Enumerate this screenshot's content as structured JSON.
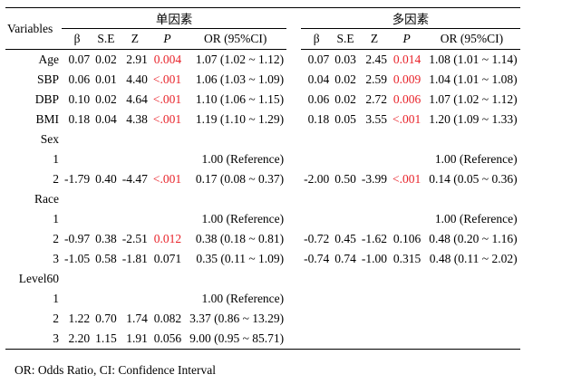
{
  "header": {
    "variables_label": "Variables",
    "group1": "单因素",
    "group2": "多因素",
    "cols": {
      "beta": "β",
      "se": "S.E",
      "z": "Z",
      "p": "P",
      "or": "OR (95%CI)"
    }
  },
  "rows": [
    {
      "label": "Age",
      "indent": false,
      "u": {
        "b": "0.07",
        "se": "0.02",
        "z": "2.91",
        "p": "0.004",
        "sig": true,
        "or": "1.07 (1.02 ~ 1.12)"
      },
      "m": {
        "b": "0.07",
        "se": "0.03",
        "z": "2.45",
        "p": "0.014",
        "sig": true,
        "or": "1.08 (1.01 ~ 1.14)"
      }
    },
    {
      "label": "SBP",
      "indent": false,
      "u": {
        "b": "0.06",
        "se": "0.01",
        "z": "4.40",
        "p": "<.001",
        "sig": true,
        "or": "1.06 (1.03 ~ 1.09)"
      },
      "m": {
        "b": "0.04",
        "se": "0.02",
        "z": "2.59",
        "p": "0.009",
        "sig": true,
        "or": "1.04 (1.01 ~ 1.08)"
      }
    },
    {
      "label": "DBP",
      "indent": false,
      "u": {
        "b": "0.10",
        "se": "0.02",
        "z": "4.64",
        "p": "<.001",
        "sig": true,
        "or": "1.10 (1.06 ~ 1.15)"
      },
      "m": {
        "b": "0.06",
        "se": "0.02",
        "z": "2.72",
        "p": "0.006",
        "sig": true,
        "or": "1.07 (1.02 ~ 1.12)"
      }
    },
    {
      "label": "BMI",
      "indent": false,
      "u": {
        "b": "0.18",
        "se": "0.04",
        "z": "4.38",
        "p": "<.001",
        "sig": true,
        "or": "1.19 (1.10 ~ 1.29)"
      },
      "m": {
        "b": "0.18",
        "se": "0.05",
        "z": "3.55",
        "p": "<.001",
        "sig": true,
        "or": "1.20 (1.09 ~ 1.33)"
      }
    },
    {
      "label": "Sex",
      "indent": false,
      "u": null,
      "m": null
    },
    {
      "label": "1",
      "indent": true,
      "u": {
        "b": "",
        "se": "",
        "z": "",
        "p": "",
        "sig": false,
        "or": "1.00 (Reference)"
      },
      "m": {
        "b": "",
        "se": "",
        "z": "",
        "p": "",
        "sig": false,
        "or": "1.00 (Reference)"
      }
    },
    {
      "label": "2",
      "indent": true,
      "u": {
        "b": "-1.79",
        "se": "0.40",
        "z": "-4.47",
        "p": "<.001",
        "sig": true,
        "or": "0.17 (0.08 ~ 0.37)"
      },
      "m": {
        "b": "-2.00",
        "se": "0.50",
        "z": "-3.99",
        "p": "<.001",
        "sig": true,
        "or": "0.14 (0.05 ~ 0.36)"
      }
    },
    {
      "label": "Race",
      "indent": false,
      "u": null,
      "m": null
    },
    {
      "label": "1",
      "indent": true,
      "u": {
        "b": "",
        "se": "",
        "z": "",
        "p": "",
        "sig": false,
        "or": "1.00 (Reference)"
      },
      "m": {
        "b": "",
        "se": "",
        "z": "",
        "p": "",
        "sig": false,
        "or": "1.00 (Reference)"
      }
    },
    {
      "label": "2",
      "indent": true,
      "u": {
        "b": "-0.97",
        "se": "0.38",
        "z": "-2.51",
        "p": "0.012",
        "sig": true,
        "or": "0.38 (0.18 ~ 0.81)"
      },
      "m": {
        "b": "-0.72",
        "se": "0.45",
        "z": "-1.62",
        "p": "0.106",
        "sig": false,
        "or": "0.48 (0.20 ~ 1.16)"
      }
    },
    {
      "label": "3",
      "indent": true,
      "u": {
        "b": "-1.05",
        "se": "0.58",
        "z": "-1.81",
        "p": "0.071",
        "sig": false,
        "or": "0.35 (0.11 ~ 1.09)"
      },
      "m": {
        "b": "-0.74",
        "se": "0.74",
        "z": "-1.00",
        "p": "0.315",
        "sig": false,
        "or": "0.48 (0.11 ~ 2.02)"
      }
    },
    {
      "label": "Level60",
      "indent": false,
      "u": null,
      "m": null
    },
    {
      "label": "1",
      "indent": true,
      "u": {
        "b": "",
        "se": "",
        "z": "",
        "p": "",
        "sig": false,
        "or": "1.00 (Reference)"
      },
      "m": null
    },
    {
      "label": "2",
      "indent": true,
      "u": {
        "b": "1.22",
        "se": "0.70",
        "z": "1.74",
        "p": "0.082",
        "sig": false,
        "or": "3.37 (0.86 ~ 13.29)"
      },
      "m": null
    },
    {
      "label": "3",
      "indent": true,
      "u": {
        "b": "2.20",
        "se": "1.15",
        "z": "1.91",
        "p": "0.056",
        "sig": false,
        "or": "9.00 (0.95 ~ 85.71)"
      },
      "m": null
    }
  ],
  "footnote": "OR: Odds Ratio, CI: Confidence Interval",
  "colors": {
    "significant": "#e8232a",
    "text": "#000000"
  }
}
